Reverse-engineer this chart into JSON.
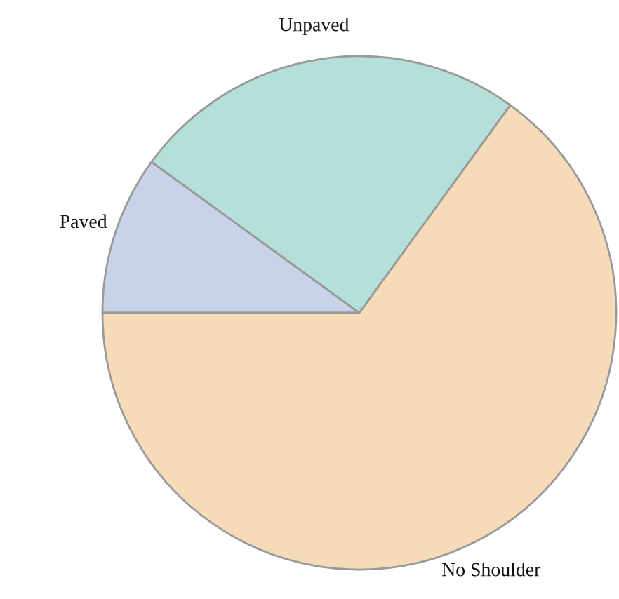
{
  "chart_data": {
    "type": "pie",
    "categories": [
      "Paved",
      "Unpaved",
      "No Shoulder"
    ],
    "values": [
      10,
      25,
      65
    ],
    "colors": [
      "#c8d3ea",
      "#b5dfd9",
      "#f5dbb7"
    ]
  }
}
